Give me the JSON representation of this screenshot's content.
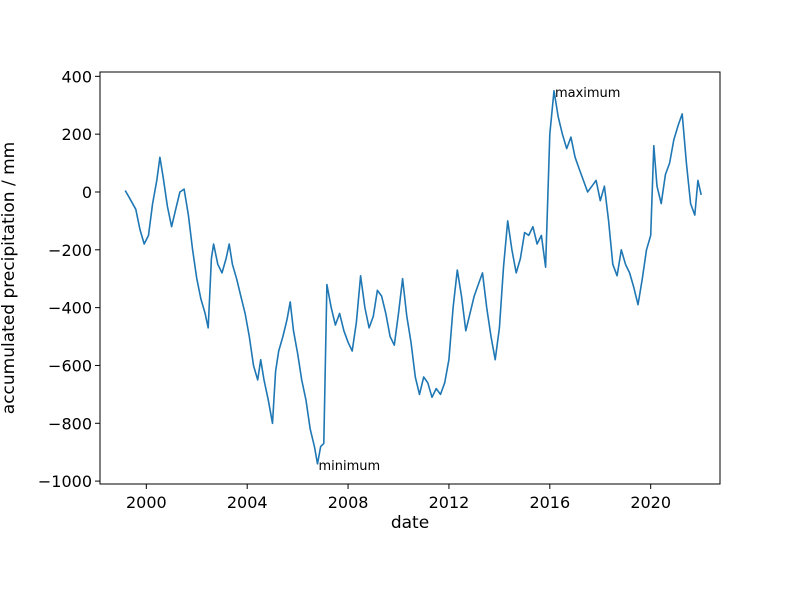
{
  "chart_data": {
    "type": "line",
    "title": "",
    "xlabel": "date",
    "ylabel": "accumulated precipitation / mm",
    "xlim": [
      "1998-03-01",
      "2022-10-01"
    ],
    "ylim": [
      -1010,
      415
    ],
    "x_ticks": [
      {
        "date": "2000-01-01",
        "label": "2000"
      },
      {
        "date": "2004-01-01",
        "label": "2004"
      },
      {
        "date": "2008-01-01",
        "label": "2008"
      },
      {
        "date": "2012-01-01",
        "label": "2012"
      },
      {
        "date": "2016-01-01",
        "label": "2016"
      },
      {
        "date": "2020-01-01",
        "label": "2020"
      }
    ],
    "y_ticks": [
      {
        "value": 400,
        "label": "400"
      },
      {
        "value": 200,
        "label": "200"
      },
      {
        "value": 0,
        "label": "0"
      },
      {
        "value": -200,
        "label": "−200"
      },
      {
        "value": -400,
        "label": "−400"
      },
      {
        "value": -600,
        "label": "−600"
      },
      {
        "value": -800,
        "label": "−800"
      },
      {
        "value": -1000,
        "label": "−1000"
      }
    ],
    "grid": false,
    "series": [
      {
        "color": "#1f77b4",
        "points": [
          [
            "1999-03-01",
            5
          ],
          [
            "1999-05-01",
            -20
          ],
          [
            "1999-08-01",
            -60
          ],
          [
            "1999-10-01",
            -130
          ],
          [
            "1999-12-01",
            -180
          ],
          [
            "2000-02-01",
            -150
          ],
          [
            "2000-04-01",
            -40
          ],
          [
            "2000-06-01",
            40
          ],
          [
            "2000-07-15",
            120
          ],
          [
            "2000-09-01",
            50
          ],
          [
            "2000-11-01",
            -50
          ],
          [
            "2001-01-01",
            -120
          ],
          [
            "2001-03-01",
            -60
          ],
          [
            "2001-05-01",
            0
          ],
          [
            "2001-07-01",
            10
          ],
          [
            "2001-09-01",
            -80
          ],
          [
            "2001-11-01",
            -200
          ],
          [
            "2002-01-01",
            -300
          ],
          [
            "2002-03-01",
            -370
          ],
          [
            "2002-05-01",
            -420
          ],
          [
            "2002-06-15",
            -470
          ],
          [
            "2002-08-01",
            -230
          ],
          [
            "2002-09-01",
            -180
          ],
          [
            "2002-11-01",
            -250
          ],
          [
            "2003-01-01",
            -280
          ],
          [
            "2003-03-01",
            -230
          ],
          [
            "2003-04-15",
            -180
          ],
          [
            "2003-06-01",
            -250
          ],
          [
            "2003-08-01",
            -300
          ],
          [
            "2003-10-01",
            -360
          ],
          [
            "2003-12-01",
            -420
          ],
          [
            "2004-02-01",
            -500
          ],
          [
            "2004-04-01",
            -600
          ],
          [
            "2004-06-01",
            -650
          ],
          [
            "2004-07-15",
            -580
          ],
          [
            "2004-09-01",
            -650
          ],
          [
            "2004-11-01",
            -720
          ],
          [
            "2005-01-01",
            -800
          ],
          [
            "2005-02-15",
            -620
          ],
          [
            "2005-04-01",
            -550
          ],
          [
            "2005-06-01",
            -500
          ],
          [
            "2005-08-01",
            -440
          ],
          [
            "2005-09-15",
            -380
          ],
          [
            "2005-11-01",
            -480
          ],
          [
            "2006-01-01",
            -560
          ],
          [
            "2006-03-01",
            -650
          ],
          [
            "2006-05-01",
            -720
          ],
          [
            "2006-07-01",
            -820
          ],
          [
            "2006-09-01",
            -880
          ],
          [
            "2006-10-15",
            -940
          ],
          [
            "2006-12-01",
            -880
          ],
          [
            "2007-01-15",
            -870
          ],
          [
            "2007-03-01",
            -320
          ],
          [
            "2007-05-01",
            -400
          ],
          [
            "2007-07-01",
            -460
          ],
          [
            "2007-09-01",
            -420
          ],
          [
            "2007-11-01",
            -480
          ],
          [
            "2008-01-01",
            -520
          ],
          [
            "2008-03-01",
            -550
          ],
          [
            "2008-05-01",
            -450
          ],
          [
            "2008-07-01",
            -290
          ],
          [
            "2008-09-01",
            -400
          ],
          [
            "2008-11-01",
            -470
          ],
          [
            "2009-01-01",
            -430
          ],
          [
            "2009-03-01",
            -340
          ],
          [
            "2009-05-01",
            -360
          ],
          [
            "2009-07-01",
            -420
          ],
          [
            "2009-09-01",
            -500
          ],
          [
            "2009-11-01",
            -530
          ],
          [
            "2010-01-01",
            -420
          ],
          [
            "2010-03-01",
            -300
          ],
          [
            "2010-05-01",
            -430
          ],
          [
            "2010-07-01",
            -520
          ],
          [
            "2010-09-01",
            -640
          ],
          [
            "2010-11-01",
            -700
          ],
          [
            "2011-01-01",
            -640
          ],
          [
            "2011-03-01",
            -660
          ],
          [
            "2011-05-01",
            -710
          ],
          [
            "2011-07-01",
            -680
          ],
          [
            "2011-09-01",
            -700
          ],
          [
            "2011-11-01",
            -660
          ],
          [
            "2012-01-01",
            -580
          ],
          [
            "2012-03-01",
            -400
          ],
          [
            "2012-05-01",
            -270
          ],
          [
            "2012-07-01",
            -360
          ],
          [
            "2012-09-01",
            -480
          ],
          [
            "2012-11-01",
            -420
          ],
          [
            "2013-01-01",
            -360
          ],
          [
            "2013-03-01",
            -320
          ],
          [
            "2013-05-01",
            -280
          ],
          [
            "2013-07-01",
            -400
          ],
          [
            "2013-09-01",
            -500
          ],
          [
            "2013-11-01",
            -580
          ],
          [
            "2014-01-01",
            -470
          ],
          [
            "2014-03-01",
            -260
          ],
          [
            "2014-05-01",
            -100
          ],
          [
            "2014-07-01",
            -200
          ],
          [
            "2014-09-01",
            -280
          ],
          [
            "2014-11-01",
            -230
          ],
          [
            "2015-01-01",
            -140
          ],
          [
            "2015-03-01",
            -150
          ],
          [
            "2015-05-01",
            -120
          ],
          [
            "2015-07-01",
            -180
          ],
          [
            "2015-09-01",
            -150
          ],
          [
            "2015-11-01",
            -260
          ],
          [
            "2016-01-01",
            200
          ],
          [
            "2016-03-01",
            350
          ],
          [
            "2016-05-01",
            260
          ],
          [
            "2016-07-01",
            200
          ],
          [
            "2016-09-01",
            150
          ],
          [
            "2016-11-01",
            190
          ],
          [
            "2017-01-01",
            120
          ],
          [
            "2017-03-01",
            80
          ],
          [
            "2017-05-01",
            40
          ],
          [
            "2017-07-01",
            0
          ],
          [
            "2017-09-01",
            20
          ],
          [
            "2017-11-01",
            40
          ],
          [
            "2018-01-01",
            -30
          ],
          [
            "2018-03-01",
            20
          ],
          [
            "2018-05-01",
            -100
          ],
          [
            "2018-07-01",
            -250
          ],
          [
            "2018-09-01",
            -290
          ],
          [
            "2018-11-01",
            -200
          ],
          [
            "2019-01-01",
            -250
          ],
          [
            "2019-03-01",
            -280
          ],
          [
            "2019-05-01",
            -330
          ],
          [
            "2019-07-01",
            -390
          ],
          [
            "2019-09-01",
            -300
          ],
          [
            "2019-11-01",
            -200
          ],
          [
            "2020-01-01",
            -150
          ],
          [
            "2020-02-15",
            160
          ],
          [
            "2020-04-01",
            20
          ],
          [
            "2020-06-01",
            -40
          ],
          [
            "2020-08-01",
            60
          ],
          [
            "2020-10-01",
            100
          ],
          [
            "2020-12-01",
            180
          ],
          [
            "2021-02-01",
            230
          ],
          [
            "2021-04-01",
            270
          ],
          [
            "2021-06-01",
            100
          ],
          [
            "2021-08-01",
            -40
          ],
          [
            "2021-10-01",
            -80
          ],
          [
            "2021-11-15",
            40
          ],
          [
            "2022-01-01",
            -10
          ]
        ]
      }
    ],
    "annotations": [
      {
        "text": "maximum",
        "date": "2016-03-01",
        "value": 350
      },
      {
        "text": "minimum",
        "date": "2006-10-15",
        "value": -940
      }
    ]
  }
}
